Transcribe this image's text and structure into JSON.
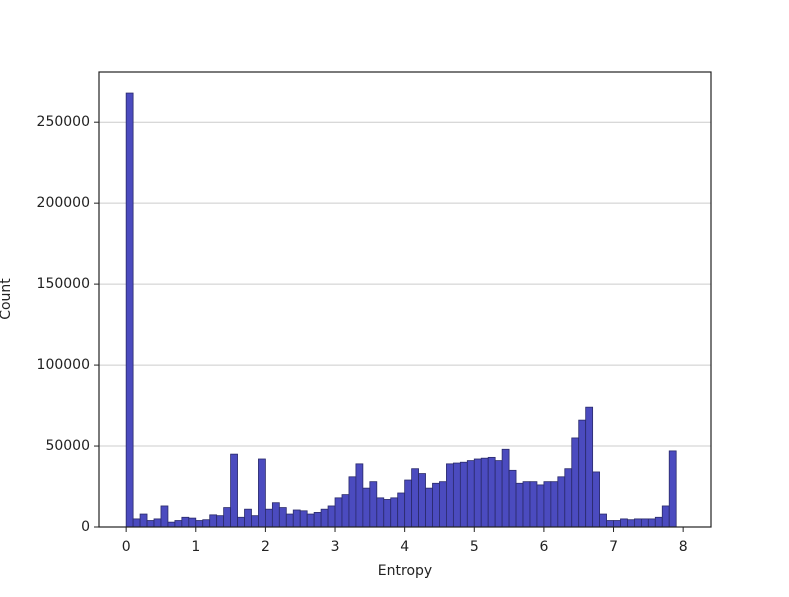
{
  "chart_data": {
    "type": "histogram",
    "xlabel": "Entropy",
    "ylabel": "Count",
    "bins": [
      0,
      0.1,
      0.2,
      0.3,
      0.4,
      0.5,
      0.6,
      0.7,
      0.8,
      0.9,
      1,
      1.1,
      1.2,
      1.3,
      1.4,
      1.5,
      1.6,
      1.7,
      1.8,
      1.9,
      2,
      2.1,
      2.2,
      2.3,
      2.4,
      2.5,
      2.6,
      2.7,
      2.8,
      2.9,
      3,
      3.1,
      3.2,
      3.3,
      3.4,
      3.5,
      3.6,
      3.7,
      3.8,
      3.9,
      4,
      4.1,
      4.2,
      4.3,
      4.4,
      4.5,
      4.6,
      4.7,
      4.8,
      4.9,
      5,
      5.1,
      5.2,
      5.3,
      5.4,
      5.5,
      5.6,
      5.7,
      5.8,
      5.9,
      6,
      6.1,
      6.2,
      6.3,
      6.4,
      6.5,
      6.6,
      6.7,
      6.8,
      6.9,
      7,
      7.1,
      7.2,
      7.3,
      7.4,
      7.5,
      7.6,
      7.7,
      7.8,
      7.9
    ],
    "values": [
      268000,
      5000,
      8000,
      4000,
      5000,
      13000,
      3000,
      4000,
      6000,
      5500,
      4000,
      4500,
      7500,
      7000,
      12000,
      45000,
      6000,
      11000,
      7000,
      42000,
      11000,
      15000,
      12000,
      8000,
      10500,
      10000,
      8000,
      9000,
      11000,
      13000,
      18000,
      20000,
      31000,
      39000,
      24000,
      28000,
      18000,
      17000,
      18000,
      21000,
      29000,
      36000,
      33000,
      24000,
      27000,
      28000,
      39000,
      39500,
      40000,
      41000,
      42000,
      42500,
      43000,
      41000,
      48000,
      35000,
      27000,
      28000,
      28000,
      26000,
      28000,
      28000,
      31000,
      36000,
      55000,
      66000,
      74000,
      34000,
      8000,
      4000,
      4000,
      5000,
      4500,
      5000,
      5000,
      5000,
      6000,
      13000,
      47000
    ],
    "color": "#4b4bbf",
    "edgecolor": "#2a2a6a",
    "xlim": [
      -0.39,
      8.4
    ],
    "ylim": [
      0,
      281000
    ],
    "xticks": [
      0,
      1,
      2,
      3,
      4,
      5,
      6,
      7,
      8
    ],
    "yticks": [
      0,
      50000,
      100000,
      150000,
      200000,
      250000
    ],
    "grid": "y"
  }
}
